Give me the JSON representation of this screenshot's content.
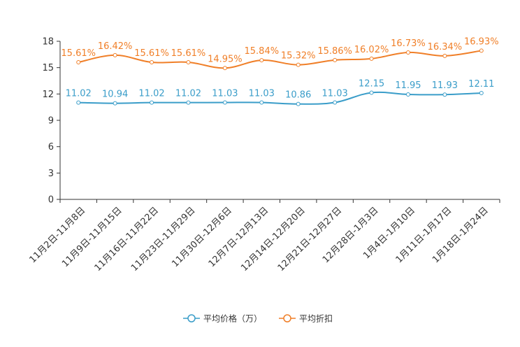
{
  "chart_data": {
    "type": "line",
    "title": "",
    "xlabel": "",
    "ylabel": "",
    "ylim": [
      0,
      18
    ],
    "yticks": [
      0,
      3,
      6,
      9,
      12,
      15,
      18
    ],
    "grid": false,
    "legend_position": "bottom-center",
    "categories": [
      "11月2日-11月8日",
      "11月9日-11月15日",
      "11月16日-11月22日",
      "11月23日-11月29日",
      "11月30日-12月6日",
      "12月7日-12月13日",
      "12月14日-12月20日",
      "12月21日-12月27日",
      "12月28日-1月3日",
      "1月4日-1月10日",
      "1月11日-1月17日",
      "1月18日-1月24日"
    ],
    "series": [
      {
        "name": "平均价格（万）",
        "color": "#3a9dc9",
        "values": [
          11.02,
          10.94,
          11.02,
          11.02,
          11.03,
          11.03,
          10.86,
          11.03,
          12.15,
          11.95,
          11.93,
          12.11
        ],
        "labels": [
          "11.02",
          "10.94",
          "11.02",
          "11.02",
          "11.03",
          "11.03",
          "10.86",
          "11.03",
          "12.15",
          "11.95",
          "11.93",
          "12.11"
        ]
      },
      {
        "name": "平均折扣",
        "color": "#f07f28",
        "values": [
          15.61,
          16.42,
          15.61,
          15.61,
          14.95,
          15.84,
          15.32,
          15.86,
          16.02,
          16.73,
          16.34,
          16.93
        ],
        "labels": [
          "15.61%",
          "16.42%",
          "15.61%",
          "15.61%",
          "14.95%",
          "15.84%",
          "15.32%",
          "15.86%",
          "16.02%",
          "16.73%",
          "16.34%",
          "16.93%"
        ]
      }
    ]
  }
}
